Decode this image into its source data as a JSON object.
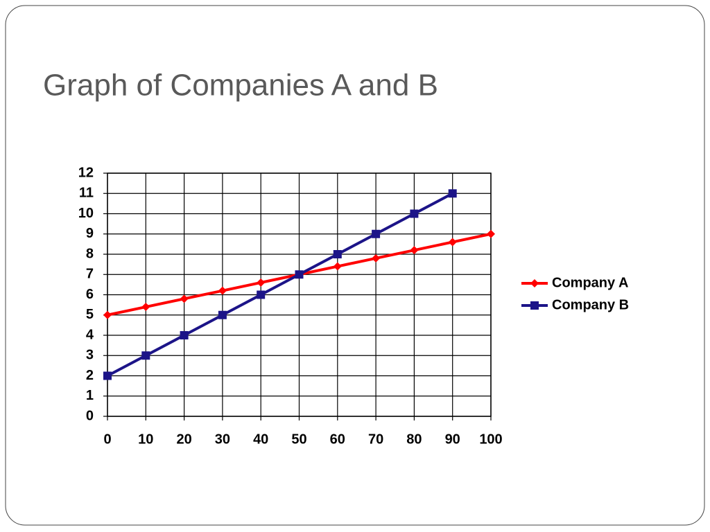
{
  "chart_data": {
    "type": "line",
    "title": "Graph of Companies A and B",
    "x": [
      0,
      10,
      20,
      30,
      40,
      50,
      60,
      70,
      80,
      90,
      100
    ],
    "series": [
      {
        "name": "Company A",
        "color": "#ff0000",
        "marker": "diamond",
        "values": [
          5,
          5.4,
          5.8,
          6.2,
          6.6,
          7,
          7.4,
          7.8,
          8.2,
          8.6,
          9
        ]
      },
      {
        "name": "Company B",
        "color": "#1c1488",
        "marker": "square",
        "values": [
          2,
          3,
          4,
          5,
          6,
          7,
          8,
          9,
          10,
          11,
          null
        ]
      }
    ],
    "xlim": [
      0,
      100
    ],
    "xticks": [
      0,
      10,
      20,
      30,
      40,
      50,
      60,
      70,
      80,
      90,
      100
    ],
    "ylim": [
      0,
      12
    ],
    "yticks": [
      0,
      1,
      2,
      3,
      4,
      5,
      6,
      7,
      8,
      9,
      10,
      11,
      12
    ],
    "grid": true,
    "legend": "right"
  }
}
